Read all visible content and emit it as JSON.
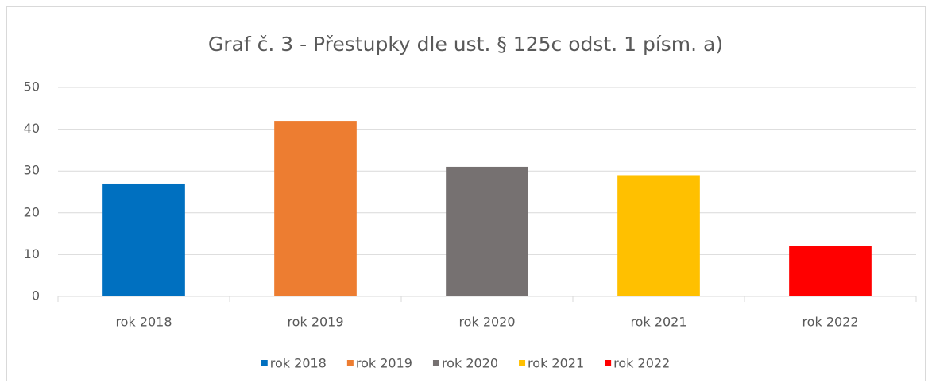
{
  "chart_data": {
    "type": "bar",
    "title": "Graf č. 3 - Přestupky dle ust. § 125c odst. 1 písm. a)",
    "categories": [
      "rok 2018",
      "rok 2019",
      "rok 2020",
      "rok 2021",
      "rok 2022"
    ],
    "values": [
      27,
      42,
      31,
      29,
      12
    ],
    "colors": [
      "#0070c0",
      "#ed7d31",
      "#767171",
      "#ffc000",
      "#ff0000"
    ],
    "ylim": [
      0,
      50
    ],
    "yticks": [
      0,
      10,
      20,
      30,
      40,
      50
    ],
    "grid": true,
    "legend": "bottom"
  }
}
